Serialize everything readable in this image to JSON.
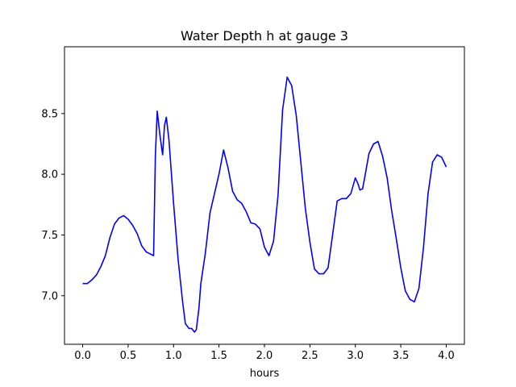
{
  "chart_data": {
    "type": "line",
    "title": "Water Depth h at gauge 3",
    "xlabel": "hours",
    "ylabel": "",
    "xlim": [
      -0.2,
      4.2
    ],
    "ylim": [
      6.6,
      9.05
    ],
    "grid": false,
    "x_ticks": [
      0.0,
      0.5,
      1.0,
      1.5,
      2.0,
      2.5,
      3.0,
      3.5,
      4.0
    ],
    "x_tick_labels": [
      "0.0",
      "0.5",
      "1.0",
      "1.5",
      "2.0",
      "2.5",
      "3.0",
      "3.5",
      "4.0"
    ],
    "y_ticks": [
      7.0,
      7.5,
      8.0,
      8.5
    ],
    "y_tick_labels": [
      "7.0",
      "7.5",
      "8.0",
      "8.5"
    ],
    "series": [
      {
        "color": "#0000ff",
        "x": [
          0.0,
          0.05,
          0.1,
          0.15,
          0.2,
          0.25,
          0.3,
          0.35,
          0.4,
          0.45,
          0.5,
          0.55,
          0.6,
          0.65,
          0.7,
          0.78,
          0.8,
          0.82,
          0.85,
          0.88,
          0.9,
          0.92,
          0.95,
          1.0,
          1.05,
          1.1,
          1.13,
          1.17,
          1.2,
          1.23,
          1.25,
          1.28,
          1.3,
          1.35,
          1.4,
          1.45,
          1.5,
          1.55,
          1.6,
          1.65,
          1.7,
          1.75,
          1.8,
          1.85,
          1.9,
          1.95,
          2.0,
          2.05,
          2.1,
          2.15,
          2.2,
          2.25,
          2.3,
          2.35,
          2.4,
          2.45,
          2.5,
          2.55,
          2.6,
          2.65,
          2.7,
          2.75,
          2.8,
          2.85,
          2.9,
          2.95,
          3.0,
          3.03,
          3.05,
          3.08,
          3.1,
          3.15,
          3.2,
          3.25,
          3.3,
          3.35,
          3.4,
          3.45,
          3.5,
          3.55,
          3.6,
          3.65,
          3.7,
          3.75,
          3.8,
          3.85,
          3.9,
          3.95,
          4.0
        ],
        "values": [
          7.1,
          7.1,
          7.13,
          7.17,
          7.24,
          7.33,
          7.48,
          7.59,
          7.64,
          7.66,
          7.63,
          7.58,
          7.51,
          7.41,
          7.36,
          7.33,
          8.15,
          8.52,
          8.32,
          8.16,
          8.4,
          8.47,
          8.28,
          7.76,
          7.3,
          6.95,
          6.77,
          6.73,
          6.73,
          6.7,
          6.72,
          6.9,
          7.1,
          7.35,
          7.68,
          7.84,
          8.0,
          8.2,
          8.05,
          7.86,
          7.79,
          7.76,
          7.69,
          7.6,
          7.59,
          7.55,
          7.4,
          7.33,
          7.45,
          7.83,
          8.53,
          8.8,
          8.73,
          8.48,
          8.1,
          7.72,
          7.44,
          7.22,
          7.18,
          7.18,
          7.23,
          7.5,
          7.78,
          7.8,
          7.8,
          7.84,
          7.97,
          7.92,
          7.87,
          7.88,
          7.96,
          8.17,
          8.25,
          8.27,
          8.15,
          7.97,
          7.7,
          7.47,
          7.23,
          7.04,
          6.97,
          6.95,
          7.06,
          7.4,
          7.84,
          8.1,
          8.16,
          8.14,
          8.06
        ]
      }
    ]
  }
}
